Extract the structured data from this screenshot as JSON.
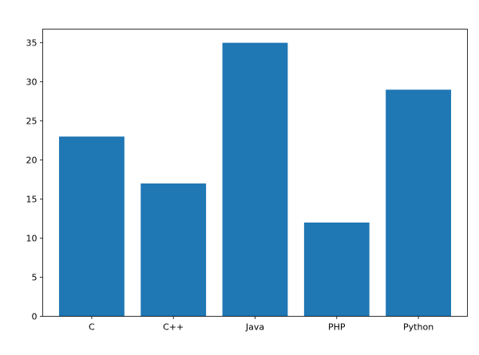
{
  "chart_data": {
    "type": "bar",
    "title": "",
    "xlabel": "",
    "ylabel": "",
    "categories": [
      "C",
      "C++",
      "Java",
      "PHP",
      "Python"
    ],
    "values": [
      23,
      17,
      35,
      12,
      29
    ],
    "ylim": [
      0,
      36.75
    ],
    "yticks": [
      0,
      5,
      10,
      15,
      20,
      25,
      30,
      35
    ],
    "grid": false,
    "bar_color": "#1f77b4"
  }
}
